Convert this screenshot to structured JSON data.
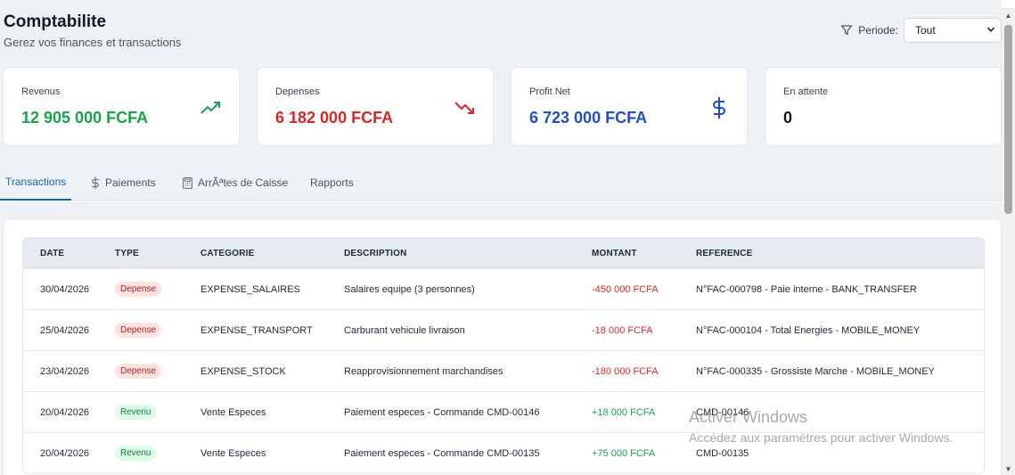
{
  "header": {
    "title": "Comptabilite",
    "subtitle": "Gerez vos finances et transactions"
  },
  "filter": {
    "label": "Periode:",
    "value": "Tout",
    "icon": "filter-icon"
  },
  "stats": [
    {
      "label": "Revenus",
      "value": "12 905 000 FCFA",
      "color": "#16a34a",
      "icon": "trending-up-icon"
    },
    {
      "label": "Depenses",
      "value": "6 182 000 FCFA",
      "color": "#dc2626",
      "icon": "trending-down-icon"
    },
    {
      "label": "Profit Net",
      "value": "6 723 000 FCFA",
      "color": "#1d4ed8",
      "icon": "dollar-icon"
    },
    {
      "label": "En attente",
      "value": "0",
      "color": "#111827",
      "icon": ""
    }
  ],
  "tabs": [
    {
      "label": "Transactions",
      "icon": ""
    },
    {
      "label": "Paiements",
      "icon": "dollar-icon"
    },
    {
      "label": "ArrÃªtes de Caisse",
      "icon": "calculator-icon"
    },
    {
      "label": "Rapports",
      "icon": ""
    }
  ],
  "table": {
    "headers": [
      "DATE",
      "TYPE",
      "CATEGORIE",
      "DESCRIPTION",
      "MONTANT",
      "REFERENCE"
    ],
    "rows": [
      {
        "date": "30/04/2026",
        "type": "Depense",
        "category": "EXPENSE_SALAIRES",
        "description": "Salaires equipe (3 personnes)",
        "amount": "-450 000 FCFA",
        "reference": "N°FAC-000798 - Paie interne - BANK_TRANSFER"
      },
      {
        "date": "25/04/2026",
        "type": "Depense",
        "category": "EXPENSE_TRANSPORT",
        "description": "Carburant vehicule livraison",
        "amount": "-18 000 FCFA",
        "reference": "N°FAC-000104 - Total Energies - MOBILE_MONEY"
      },
      {
        "date": "23/04/2026",
        "type": "Depense",
        "category": "EXPENSE_STOCK",
        "description": "Reapprovisionnement marchandises",
        "amount": "-180 000 FCFA",
        "reference": "N°FAC-000335 - Grossiste Marche - MOBILE_MONEY"
      },
      {
        "date": "20/04/2026",
        "type": "Revenu",
        "category": "Vente Especes",
        "description": "Paiement especes - Commande CMD-00146",
        "amount": "+18 000 FCFA",
        "reference": "CMD-00146"
      },
      {
        "date": "20/04/2026",
        "type": "Revenu",
        "category": "Vente Especes",
        "description": "Paiement especes - Commande CMD-00135",
        "amount": "+75 000 FCFA",
        "reference": "CMD-00135"
      }
    ]
  },
  "watermark": {
    "line1": "Activer Windows",
    "line2": "Accédez aux paramètres pour activer Windows."
  }
}
